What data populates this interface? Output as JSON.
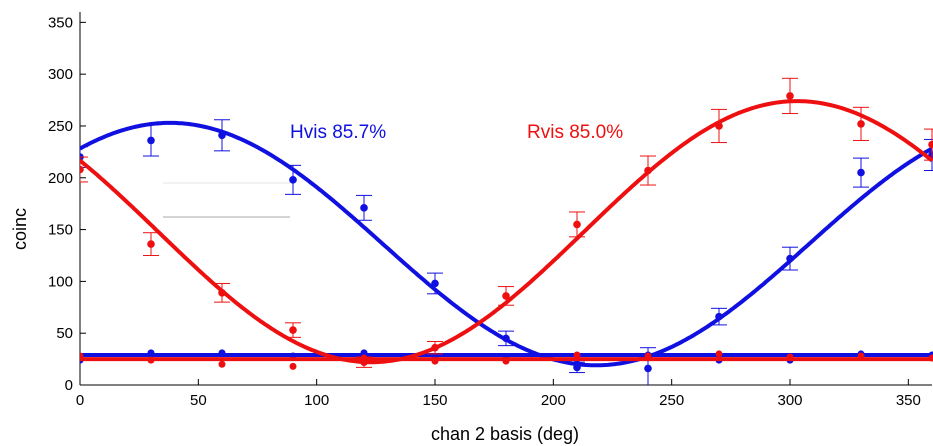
{
  "chart_data": {
    "type": "scatter",
    "xlabel": "chan 2 basis (deg)",
    "ylabel": "coinc",
    "xlim": [
      0,
      360
    ],
    "ylim": [
      0,
      360
    ],
    "xticks": [
      0,
      50,
      100,
      150,
      200,
      250,
      300,
      350
    ],
    "yticks": [
      0,
      50,
      100,
      150,
      200,
      250,
      300,
      350
    ],
    "grid": false,
    "annotations": [
      {
        "text": "Hvis 85.7%",
        "color": "#1010e0"
      },
      {
        "text": "Rvis 85.0%",
        "color": "#ee1010"
      }
    ],
    "series": [
      {
        "color": "#1010e0",
        "points": [
          {
            "x": 0,
            "y": 220,
            "err": 10
          },
          {
            "x": 30,
            "y": 236,
            "err": 15
          },
          {
            "x": 60,
            "y": 241,
            "err": 15
          },
          {
            "x": 90,
            "y": 198,
            "err": 14
          },
          {
            "x": 120,
            "y": 171,
            "err": 12
          },
          {
            "x": 150,
            "y": 98,
            "err": 10
          },
          {
            "x": 180,
            "y": 45,
            "err": 7
          },
          {
            "x": 210,
            "y": 17,
            "err": 5
          },
          {
            "x": 240,
            "y": 16,
            "err": 20
          },
          {
            "x": 270,
            "y": 66,
            "err": 8
          },
          {
            "x": 300,
            "y": 122,
            "err": 11
          },
          {
            "x": 330,
            "y": 205,
            "err": 14
          },
          {
            "x": 360,
            "y": 222,
            "err": 15
          }
        ],
        "fit": {
          "offset": 136,
          "amplitude": 117,
          "phase_deg": 38
        },
        "background_points": [
          {
            "x": 0,
            "y": 24
          },
          {
            "x": 30,
            "y": 31
          },
          {
            "x": 60,
            "y": 31
          },
          {
            "x": 90,
            "y": 28
          },
          {
            "x": 120,
            "y": 31
          },
          {
            "x": 150,
            "y": 27
          },
          {
            "x": 180,
            "y": 27
          },
          {
            "x": 210,
            "y": 25
          },
          {
            "x": 240,
            "y": 29
          },
          {
            "x": 270,
            "y": 24
          },
          {
            "x": 300,
            "y": 24
          },
          {
            "x": 330,
            "y": 30
          },
          {
            "x": 360,
            "y": 29
          }
        ],
        "background_level": 29
      },
      {
        "color": "#ee1010",
        "points": [
          {
            "x": 0,
            "y": 208,
            "err": 12
          },
          {
            "x": 30,
            "y": 136,
            "err": 11
          },
          {
            "x": 60,
            "y": 89,
            "err": 9
          },
          {
            "x": 90,
            "y": 53,
            "err": 7
          },
          {
            "x": 120,
            "y": 22,
            "err": 5
          },
          {
            "x": 150,
            "y": 36,
            "err": 6
          },
          {
            "x": 180,
            "y": 86,
            "err": 9
          },
          {
            "x": 210,
            "y": 155,
            "err": 12
          },
          {
            "x": 240,
            "y": 207,
            "err": 14
          },
          {
            "x": 270,
            "y": 250,
            "err": 16
          },
          {
            "x": 300,
            "y": 279,
            "err": 17
          },
          {
            "x": 330,
            "y": 252,
            "err": 16
          },
          {
            "x": 360,
            "y": 232,
            "err": 15
          }
        ],
        "fit": {
          "offset": 148,
          "amplitude": 126,
          "phase_deg": 303
        },
        "background_points": [
          {
            "x": 0,
            "y": 28
          },
          {
            "x": 30,
            "y": 24
          },
          {
            "x": 60,
            "y": 20
          },
          {
            "x": 90,
            "y": 18
          },
          {
            "x": 120,
            "y": 26
          },
          {
            "x": 150,
            "y": 23
          },
          {
            "x": 180,
            "y": 23
          },
          {
            "x": 210,
            "y": 29
          },
          {
            "x": 240,
            "y": 28
          },
          {
            "x": 270,
            "y": 30
          },
          {
            "x": 300,
            "y": 27
          },
          {
            "x": 330,
            "y": 28
          },
          {
            "x": 360,
            "y": 26
          }
        ],
        "background_level": 25
      }
    ]
  }
}
